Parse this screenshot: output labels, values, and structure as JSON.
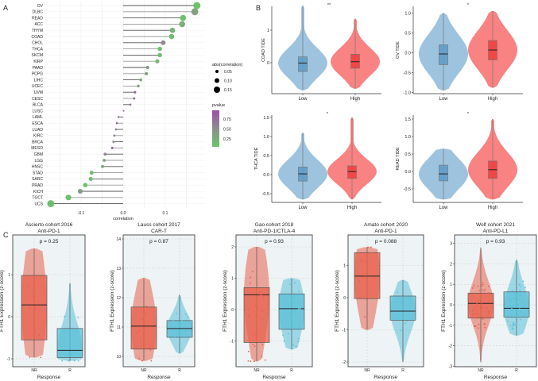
{
  "panel_labels": [
    "A",
    "B",
    "C"
  ],
  "chart_data": [
    {
      "panel": "A",
      "type": "scatter",
      "subtype": "lollipop",
      "xlabel": "correlation",
      "xticks": [
        -0.1,
        0.0,
        0.1
      ],
      "xtick_labels": [
        "-0.1",
        "0.0",
        "0.1"
      ],
      "xlim": [
        -0.19,
        0.19
      ],
      "grid": true,
      "categories": [
        "OV",
        "DLBC",
        "READ",
        "ACC",
        "THYM",
        "COAD",
        "CHOL",
        "THCA",
        "SKCM",
        "KIRP",
        "PAAD",
        "PCPG",
        "LIHC",
        "UCEC",
        "UVM",
        "CESC",
        "BLCA",
        "LUSC",
        "LAML",
        "ESCA",
        "LUAD",
        "KIRC",
        "BRCA",
        "MESO",
        "GBM",
        "LGG",
        "HNSC",
        "STAD",
        "SARC",
        "PRAD",
        "KICH",
        "TGCT",
        "UCS"
      ],
      "correlation": [
        0.175,
        0.17,
        0.142,
        0.14,
        0.117,
        0.115,
        0.095,
        0.087,
        0.087,
        0.081,
        0.058,
        0.055,
        0.042,
        0.036,
        0.028,
        0.026,
        0.017,
        0.001,
        -0.011,
        -0.015,
        -0.017,
        -0.021,
        -0.023,
        -0.026,
        -0.043,
        -0.045,
        -0.049,
        -0.075,
        -0.077,
        -0.09,
        -0.102,
        -0.13,
        -0.172
      ],
      "pvalue": [
        0.02,
        0.3,
        0.05,
        0.2,
        0.15,
        0.05,
        0.55,
        0.05,
        0.05,
        0.1,
        0.4,
        0.35,
        0.25,
        0.3,
        0.85,
        0.7,
        0.7,
        0.95,
        0.85,
        0.8,
        0.65,
        0.6,
        0.4,
        0.85,
        0.6,
        0.35,
        0.25,
        0.05,
        0.15,
        0.02,
        0.35,
        0.05,
        0.05
      ],
      "size_legend": {
        "title": "abs(correlation)",
        "values": [
          0.05,
          0.1,
          0.15
        ],
        "labels": [
          "0.05",
          "0.10",
          "0.15"
        ]
      },
      "color_legend": {
        "title": "pvalue",
        "labels": [
          "0.75",
          "0.50",
          "0.25"
        ],
        "low_color": "#6cc46a",
        "mid_color": "#8e8e8e",
        "high_color": "#9b4fa6"
      },
      "legend_placement": "right"
    },
    {
      "panel": "B",
      "type": "violin",
      "ylabel": "COAD TIDE",
      "significance": "**",
      "categories": [
        "Low",
        "High"
      ],
      "yticks": [
        0,
        1
      ],
      "ytick_labels": [
        "0",
        "1"
      ],
      "series": [
        {
          "group": "Low",
          "min": -0.85,
          "q1": -0.27,
          "median": -0.01,
          "q3": 0.18,
          "max": 1.75
        },
        {
          "group": "High",
          "min": -0.8,
          "q1": -0.17,
          "median": 0.03,
          "q3": 0.26,
          "max": 1.35
        }
      ]
    },
    {
      "panel": "B",
      "type": "violin",
      "ylabel": "OV TIDE",
      "significance": "*",
      "categories": [
        "Low",
        "High"
      ],
      "yticks": [
        -1,
        -0.5,
        0,
        0.5,
        1
      ],
      "ytick_labels": [
        "-1.0",
        "-0.5",
        "0.0",
        "0.5",
        "1.0"
      ],
      "series": [
        {
          "group": "Low",
          "min": -0.95,
          "q1": -0.3,
          "median": -0.03,
          "q3": 0.2,
          "max": 1.0
        },
        {
          "group": "High",
          "min": -0.88,
          "q1": -0.18,
          "median": 0.07,
          "q3": 0.31,
          "max": 1.05
        }
      ]
    },
    {
      "panel": "B",
      "type": "violin",
      "ylabel": "THCA TIDE",
      "significance": "*",
      "categories": [
        "Low",
        "High"
      ],
      "yticks": [
        -0.5,
        0,
        0.5,
        1,
        1.5
      ],
      "ytick_labels": [
        "-0.5",
        "0.0",
        "0.5",
        "1.0",
        "1.5"
      ],
      "series": [
        {
          "group": "Low",
          "min": -0.65,
          "q1": -0.17,
          "median": 0.02,
          "q3": 0.2,
          "max": 1.1
        },
        {
          "group": "High",
          "min": -0.65,
          "q1": -0.1,
          "median": 0.08,
          "q3": 0.23,
          "max": 1.5
        }
      ]
    },
    {
      "panel": "B",
      "type": "violin",
      "ylabel": "READ TIDE",
      "significance": "*",
      "categories": [
        "Low",
        "High"
      ],
      "yticks": [
        -0.5,
        0,
        0.5,
        1,
        1.5
      ],
      "ytick_labels": [
        "-0.5",
        "0.0",
        "0.5",
        "1.0",
        "1.5"
      ],
      "series": [
        {
          "group": "Low",
          "min": -0.8,
          "q1": -0.27,
          "median": -0.07,
          "q3": 0.18,
          "max": 0.65
        },
        {
          "group": "High",
          "min": -0.8,
          "q1": -0.2,
          "median": 0.05,
          "q3": 0.3,
          "max": 1.5
        }
      ]
    },
    {
      "panel": "C",
      "type": "violin",
      "title": "Ascierto cohort 2016",
      "subtitle": "Anti-PD-1",
      "p_label": "p = 0.25",
      "xlabel": "Response",
      "ylabel": "FTH1 Expression (z-score)",
      "categories": [
        "NR",
        "R"
      ],
      "yticks": [
        -1,
        0,
        1
      ],
      "ytick_labels": [
        "-1",
        "0",
        "1"
      ],
      "series": [
        {
          "group": "NR",
          "min": -0.97,
          "q1": -0.55,
          "median": 0.28,
          "q3": 0.98,
          "max": 1.62
        },
        {
          "group": "R",
          "min": -1.05,
          "q1": -0.97,
          "median": -0.8,
          "q3": -0.28,
          "max": 0.8
        }
      ]
    },
    {
      "panel": "C",
      "type": "violin",
      "title": "Lauss cohort 2017",
      "subtitle": "CAR-T",
      "p_label": "p = 0.87",
      "xlabel": "Response",
      "ylabel": "FTH1 Expression (z-score)",
      "categories": [
        "NR",
        "R"
      ],
      "yticks": [
        10,
        11,
        12,
        13,
        14
      ],
      "ytick_labels": [
        "10",
        "11",
        "12",
        "13",
        "14"
      ],
      "series": [
        {
          "group": "NR",
          "min": 9.85,
          "q1": 10.25,
          "median": 11.03,
          "q3": 11.68,
          "max": 12.67
        },
        {
          "group": "R",
          "min": 10.1,
          "q1": 10.65,
          "median": 10.95,
          "q3": 11.22,
          "max": 12.1
        }
      ]
    },
    {
      "panel": "C",
      "type": "violin",
      "title": "Gao cohort 2018",
      "subtitle": "Anti-PD-1/CTLA-4",
      "p_label": "p = 0.93",
      "xlabel": "Response",
      "ylabel": "FTH1 Expression (z-score)",
      "categories": [
        "NR",
        "R"
      ],
      "yticks": [
        -1,
        0,
        1,
        2
      ],
      "ytick_labels": [
        "-1",
        "0",
        "1",
        "2"
      ],
      "series": [
        {
          "group": "NR",
          "min": -1.65,
          "q1": -1.05,
          "median": 0.47,
          "q3": 0.7,
          "max": 2.0
        },
        {
          "group": "R",
          "min": -1.27,
          "q1": -0.63,
          "median": 0.03,
          "q3": 0.5,
          "max": 1.0
        }
      ]
    },
    {
      "panel": "C",
      "type": "violin",
      "title": "Amato cohort 2020",
      "subtitle": "Anti-PD-1",
      "p_label": "p = 0.088",
      "xlabel": "Response",
      "ylabel": "FTH1 Expression (z-score)",
      "categories": [
        "NR",
        "R"
      ],
      "yticks": [
        -2,
        -1,
        0,
        1
      ],
      "ytick_labels": [
        "-2",
        "-1",
        "0",
        "1"
      ],
      "series": [
        {
          "group": "NR",
          "min": -1.0,
          "q1": -0.03,
          "median": 0.67,
          "q3": 1.4,
          "max": 1.57
        },
        {
          "group": "R",
          "min": -2.0,
          "q1": -0.7,
          "median": -0.42,
          "q3": 0.05,
          "max": 0.55
        }
      ]
    },
    {
      "panel": "C",
      "type": "violin",
      "title": "Wolf cohort 2021",
      "subtitle": "Anti-PD-L1",
      "p_label": "p = 0.93",
      "xlabel": "Response",
      "ylabel": "FTH1 Expression (z-score)",
      "categories": [
        "NR",
        "R"
      ],
      "yticks": [
        -3,
        -2,
        -1,
        0,
        1,
        2,
        3
      ],
      "ytick_labels": [
        "-3",
        "-2",
        "-1",
        "0",
        "1",
        "2",
        "3"
      ],
      "series": [
        {
          "group": "NR",
          "min": -2.8,
          "q1": -0.65,
          "median": 0.07,
          "q3": 0.57,
          "max": 2.8
        },
        {
          "group": "R",
          "min": -1.5,
          "q1": -0.6,
          "median": -0.17,
          "q3": 0.63,
          "max": 2.2
        }
      ]
    }
  ],
  "colors": {
    "b_low_violin": "#9ec3de",
    "b_low_box": "#5f9dc9",
    "b_high_violin": "#f98282",
    "b_high_box": "#f23f3f",
    "c_nr": "#e8604c",
    "c_r": "#5bc0d8",
    "c_panel_bg": "#eef3f5"
  }
}
